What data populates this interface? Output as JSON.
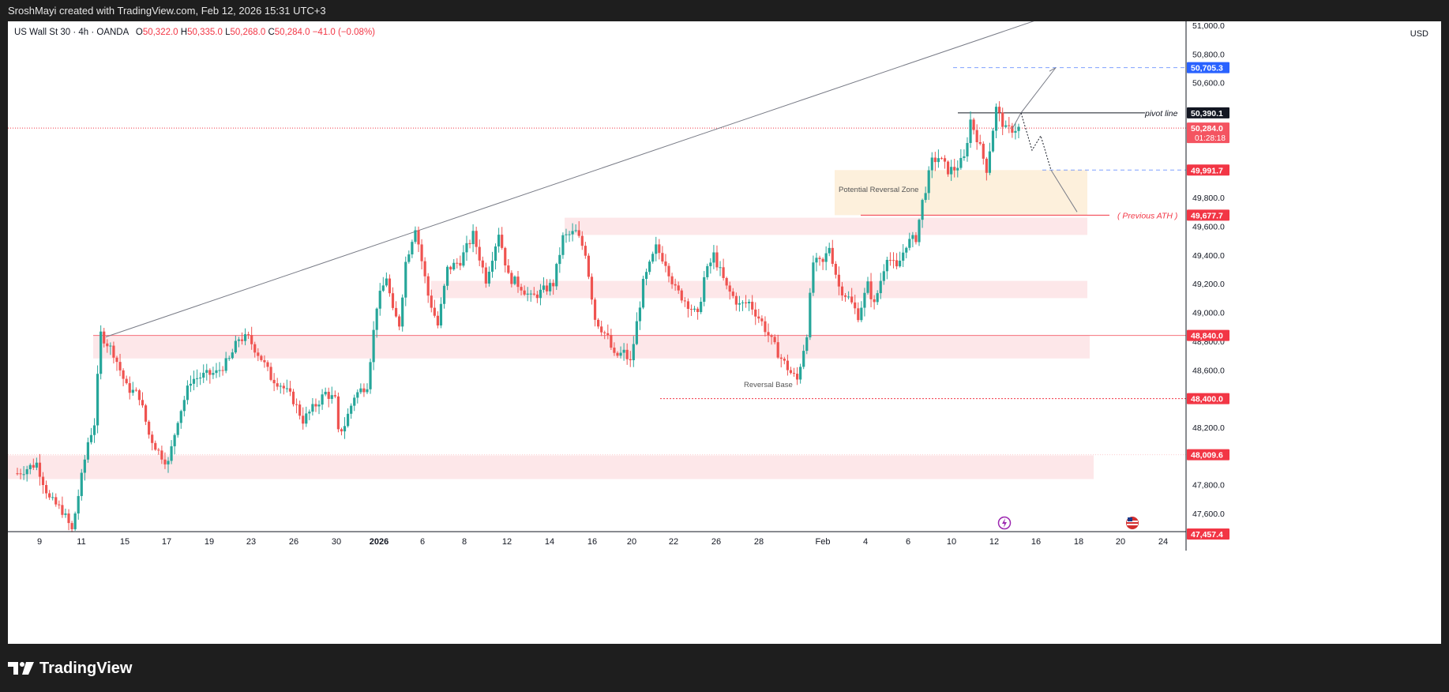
{
  "caption": "SroshMayi created with TradingView.com, Feb 12, 2026 15:31 UTC+3",
  "brand": "TradingView",
  "legend": {
    "symbol": "US Wall St 30 · 4h · OANDA",
    "open_label": "O",
    "open": "50,322.0",
    "high_label": "H",
    "high": "50,335.0",
    "low_label": "L",
    "low": "50,268.0",
    "close_label": "C",
    "close": "50,284.0",
    "change": "−41.0 (−0.08%)"
  },
  "currency": "USD",
  "colors": {
    "up": "#26a69a",
    "down": "#ef5350",
    "zone": "#fde7e9",
    "reversal_zone": "#fdf0dc",
    "axis_red": "#f23645",
    "axis_blue": "#2962ff"
  },
  "chart_data": {
    "type": "candlestick",
    "ylim": [
      47457.4,
      51000
    ],
    "y_ticks": [
      "51,000.0",
      "50,800.0",
      "50,600.0",
      "49,800.0",
      "49,600.0",
      "49,400.0",
      "49,200.0",
      "49,000.0",
      "48,800.0",
      "48,600.0",
      "48,200.0",
      "47,800.0",
      "47,600.0"
    ],
    "y_tick_values": [
      51000,
      50800,
      50600,
      49800,
      49600,
      49400,
      49200,
      49000,
      48800,
      48600,
      48200,
      47800,
      47600
    ],
    "x_ticks": [
      "9",
      "11",
      "15",
      "17",
      "19",
      "23",
      "26",
      "30",
      "2026",
      "6",
      "8",
      "12",
      "14",
      "16",
      "20",
      "22",
      "26",
      "28",
      "Feb",
      "4",
      "6",
      "10",
      "12",
      "16",
      "18",
      "20",
      "24"
    ],
    "price_labels": [
      {
        "value": 50705.3,
        "text": "50,705.3",
        "style": "blue"
      },
      {
        "value": 50390.1,
        "text": "50,390.1",
        "style": "black"
      },
      {
        "value": 50284.0,
        "text": "50,284.0",
        "sub": "01:28:18",
        "style": "red"
      },
      {
        "value": 49991.7,
        "text": "49,991.7",
        "style": "red"
      },
      {
        "value": 49677.7,
        "text": "49,677.7",
        "style": "red"
      },
      {
        "value": 48840.0,
        "text": "48,840.0",
        "style": "red"
      },
      {
        "value": 48400.0,
        "text": "48,400.0",
        "style": "red"
      },
      {
        "value": 48009.6,
        "text": "48,009.6",
        "style": "red"
      },
      {
        "value": 47457.4,
        "text": "47,457.4",
        "style": "red"
      }
    ],
    "annotations": {
      "pivot_line": "pivot line",
      "previous_ath": "( Previous ATH )",
      "potential_reversal_zone": "Potential Reversal Zone",
      "reversal_base": "Reversal Base"
    },
    "path": [
      [
        0,
        47880
      ],
      [
        6,
        47950
      ],
      [
        10,
        47700
      ],
      [
        14,
        47620
      ],
      [
        17,
        47480
      ],
      [
        22,
        48100
      ],
      [
        24,
        48230
      ],
      [
        26,
        48850
      ],
      [
        30,
        48720
      ],
      [
        34,
        48480
      ],
      [
        38,
        48420
      ],
      [
        41,
        48150
      ],
      [
        44,
        48030
      ],
      [
        47,
        47950
      ],
      [
        50,
        48260
      ],
      [
        54,
        48530
      ],
      [
        58,
        48560
      ],
      [
        62,
        48580
      ],
      [
        66,
        48670
      ],
      [
        69,
        48820
      ],
      [
        72,
        48820
      ],
      [
        76,
        48680
      ],
      [
        79,
        48550
      ],
      [
        82,
        48500
      ],
      [
        86,
        48390
      ],
      [
        89,
        48250
      ],
      [
        92,
        48330
      ],
      [
        96,
        48440
      ],
      [
        99,
        48390
      ],
      [
        100,
        48160
      ],
      [
        102,
        48220
      ],
      [
        105,
        48420
      ],
      [
        109,
        48500
      ],
      [
        112,
        49050
      ],
      [
        115,
        49250
      ],
      [
        117,
        49000
      ],
      [
        119,
        48920
      ],
      [
        121,
        49350
      ],
      [
        124,
        49600
      ],
      [
        128,
        49120
      ],
      [
        131,
        48910
      ],
      [
        134,
        49300
      ],
      [
        138,
        49360
      ],
      [
        142,
        49540
      ],
      [
        146,
        49230
      ],
      [
        150,
        49560
      ],
      [
        153,
        49250
      ],
      [
        157,
        49180
      ],
      [
        160,
        49100
      ],
      [
        163,
        49140
      ],
      [
        167,
        49200
      ],
      [
        170,
        49520
      ],
      [
        174,
        49560
      ],
      [
        177,
        49420
      ],
      [
        180,
        48960
      ],
      [
        184,
        48820
      ],
      [
        186,
        48690
      ],
      [
        189,
        48720
      ],
      [
        191,
        48650
      ],
      [
        195,
        49200
      ],
      [
        199,
        49450
      ],
      [
        202,
        49350
      ],
      [
        205,
        49160
      ],
      [
        209,
        49060
      ],
      [
        212,
        48970
      ],
      [
        214,
        49240
      ],
      [
        217,
        49400
      ],
      [
        221,
        49170
      ],
      [
        225,
        49050
      ],
      [
        228,
        49070
      ],
      [
        232,
        48930
      ],
      [
        235,
        48800
      ],
      [
        238,
        48680
      ],
      [
        241,
        48580
      ],
      [
        243,
        48530
      ],
      [
        246,
        48860
      ],
      [
        248,
        49350
      ],
      [
        251,
        49340
      ],
      [
        253,
        49460
      ],
      [
        256,
        49180
      ],
      [
        259,
        49100
      ],
      [
        262,
        48980
      ],
      [
        265,
        49190
      ],
      [
        267,
        49050
      ],
      [
        271,
        49400
      ],
      [
        274,
        49300
      ],
      [
        277,
        49480
      ],
      [
        280,
        49520
      ],
      [
        282,
        49770
      ],
      [
        285,
        50050
      ],
      [
        287,
        50080
      ],
      [
        290,
        49990
      ],
      [
        292,
        50000
      ],
      [
        295,
        50070
      ],
      [
        297,
        50340
      ],
      [
        299,
        50220
      ],
      [
        302,
        50000
      ],
      [
        305,
        50420
      ],
      [
        308,
        50270
      ],
      [
        312,
        50284
      ]
    ]
  }
}
